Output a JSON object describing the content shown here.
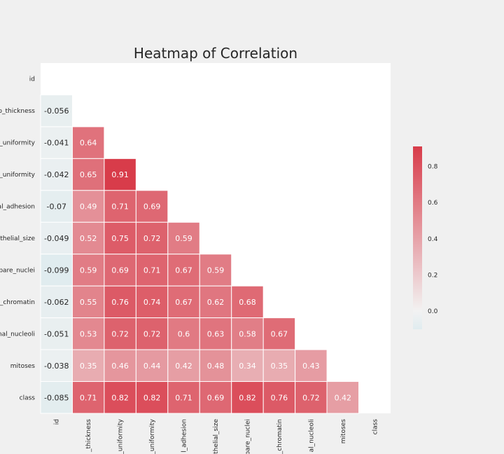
{
  "chart_data": {
    "type": "heatmap",
    "title": "Heatmap of Correlation",
    "row_labels": [
      "id",
      "p_thickness",
      "_uniformity",
      "_uniformity",
      "al_adhesion",
      "thelial_size",
      "bare_nuclei",
      "_chromatin",
      "nal_nucleoli",
      "mitoses",
      "class"
    ],
    "col_labels": [
      "id",
      "_thickness",
      "_uniformity",
      "_uniformity",
      "l_adhesion",
      "thelial_size",
      "bare_nuclei",
      "_chromatin",
      "al_nucleoli",
      "mitoses",
      "class"
    ],
    "mask": "upper-triangle-including-diagonal",
    "values": [
      [],
      [
        -0.056
      ],
      [
        -0.041,
        0.64
      ],
      [
        -0.042,
        0.65,
        0.91
      ],
      [
        -0.07,
        0.49,
        0.71,
        0.69
      ],
      [
        -0.049,
        0.52,
        0.75,
        0.72,
        0.59
      ],
      [
        -0.099,
        0.59,
        0.69,
        0.71,
        0.67,
        0.59
      ],
      [
        -0.062,
        0.55,
        0.76,
        0.74,
        0.67,
        0.62,
        0.68
      ],
      [
        -0.051,
        0.53,
        0.72,
        0.72,
        0.6,
        0.63,
        0.58,
        0.67
      ],
      [
        -0.038,
        0.35,
        0.46,
        0.44,
        0.42,
        0.48,
        0.34,
        0.35,
        0.43
      ],
      [
        -0.085,
        0.71,
        0.82,
        0.82,
        0.71,
        0.69,
        0.82,
        0.76,
        0.72,
        0.42
      ]
    ],
    "colorbar": {
      "vmin": -0.1,
      "vmax": 0.91,
      "ticks": [
        "0.0",
        "0.2",
        "0.4",
        "0.6",
        "0.8"
      ],
      "tick_values": [
        0,
        0.2,
        0.4,
        0.6,
        0.8
      ]
    },
    "colors": {
      "negative": "#e0ecef",
      "neutral": "#f2f2f2",
      "positive": "#d83c4a"
    },
    "legend_position": "right"
  }
}
